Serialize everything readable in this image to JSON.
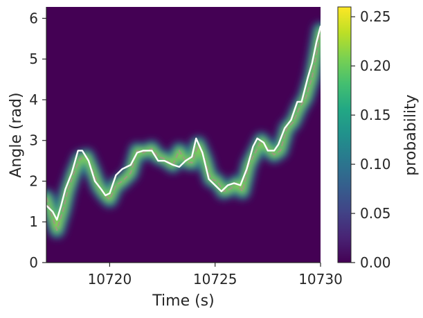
{
  "chart_data": {
    "type": "heatmap",
    "title": "",
    "xlabel": "Time (s)",
    "ylabel": "Angle (rad)",
    "xlim": [
      10717,
      10730
    ],
    "ylim": [
      0,
      6.28
    ],
    "xticks": [
      10720,
      10725,
      10730
    ],
    "yticks": [
      0,
      1,
      2,
      3,
      4,
      5,
      6
    ],
    "colormap": "viridis",
    "colorbar": {
      "label": "probability",
      "range": [
        0,
        0.26
      ],
      "ticks": [
        "0.00",
        "0.05",
        "0.10",
        "0.15",
        "0.20",
        "0.25"
      ],
      "tick_values": [
        0,
        0.05,
        0.1,
        0.15,
        0.2,
        0.25
      ]
    },
    "grid": false,
    "series": [
      {
        "role": "actual",
        "color": "#ffffff",
        "style": "solid",
        "x": [
          10717.0,
          10717.3,
          10717.5,
          10717.7,
          10717.9,
          10718.2,
          10718.5,
          10718.7,
          10719.0,
          10719.3,
          10719.6,
          10719.8,
          10720.0,
          10720.3,
          10720.6,
          10721.0,
          10721.3,
          10721.6,
          10722.0,
          10722.3,
          10722.6,
          10723.0,
          10723.3,
          10723.6,
          10723.9,
          10724.1,
          10724.4,
          10724.7,
          10725.0,
          10725.3,
          10725.6,
          10725.9,
          10726.2,
          10726.5,
          10726.8,
          10727.0,
          10727.3,
          10727.5,
          10727.8,
          10728.0,
          10728.3,
          10728.6,
          10728.9,
          10729.1,
          10729.4,
          10729.6,
          10729.8,
          10730.0
        ],
        "y": [
          1.4,
          1.25,
          1.05,
          1.4,
          1.8,
          2.2,
          2.75,
          2.75,
          2.5,
          2.0,
          1.8,
          1.65,
          1.7,
          2.15,
          2.3,
          2.4,
          2.7,
          2.75,
          2.75,
          2.5,
          2.5,
          2.4,
          2.35,
          2.5,
          2.6,
          3.05,
          2.7,
          2.05,
          1.9,
          1.75,
          1.9,
          1.95,
          1.9,
          2.3,
          2.85,
          3.05,
          2.95,
          2.75,
          2.75,
          2.9,
          3.3,
          3.5,
          3.95,
          3.95,
          4.55,
          4.9,
          5.4,
          5.8
        ]
      },
      {
        "role": "decoded",
        "color": "#9a9a80",
        "style": "dashed",
        "x": [
          10717.0,
          10717.3,
          10717.5,
          10717.8,
          10718.0,
          10718.3,
          10718.6,
          10718.9,
          10719.2,
          10719.5,
          10719.8,
          10720.0,
          10720.3,
          10720.6,
          10721.0,
          10721.3,
          10721.6,
          10722.0,
          10722.3,
          10722.6,
          10723.0,
          10723.3,
          10723.6,
          10723.9,
          10724.2,
          10724.5,
          10724.8,
          10725.1,
          10725.4,
          10725.7,
          10726.0,
          10726.3,
          10726.6,
          10726.9,
          10727.2,
          10727.5,
          10727.8,
          10728.1,
          10728.4,
          10728.7,
          10729.0,
          10729.3,
          10729.6,
          10729.8,
          10730.0
        ],
        "y": [
          1.6,
          1.1,
          0.8,
          1.3,
          1.75,
          2.2,
          2.55,
          2.6,
          2.25,
          1.85,
          1.65,
          1.55,
          1.9,
          2.0,
          2.2,
          2.75,
          2.7,
          2.8,
          2.6,
          2.55,
          2.4,
          2.75,
          2.5,
          2.45,
          2.9,
          2.55,
          2.05,
          2.0,
          1.75,
          1.8,
          1.95,
          1.75,
          2.4,
          2.7,
          3.0,
          2.8,
          2.65,
          2.75,
          3.3,
          3.45,
          3.8,
          4.05,
          4.55,
          5.1,
          5.7
        ]
      }
    ]
  }
}
